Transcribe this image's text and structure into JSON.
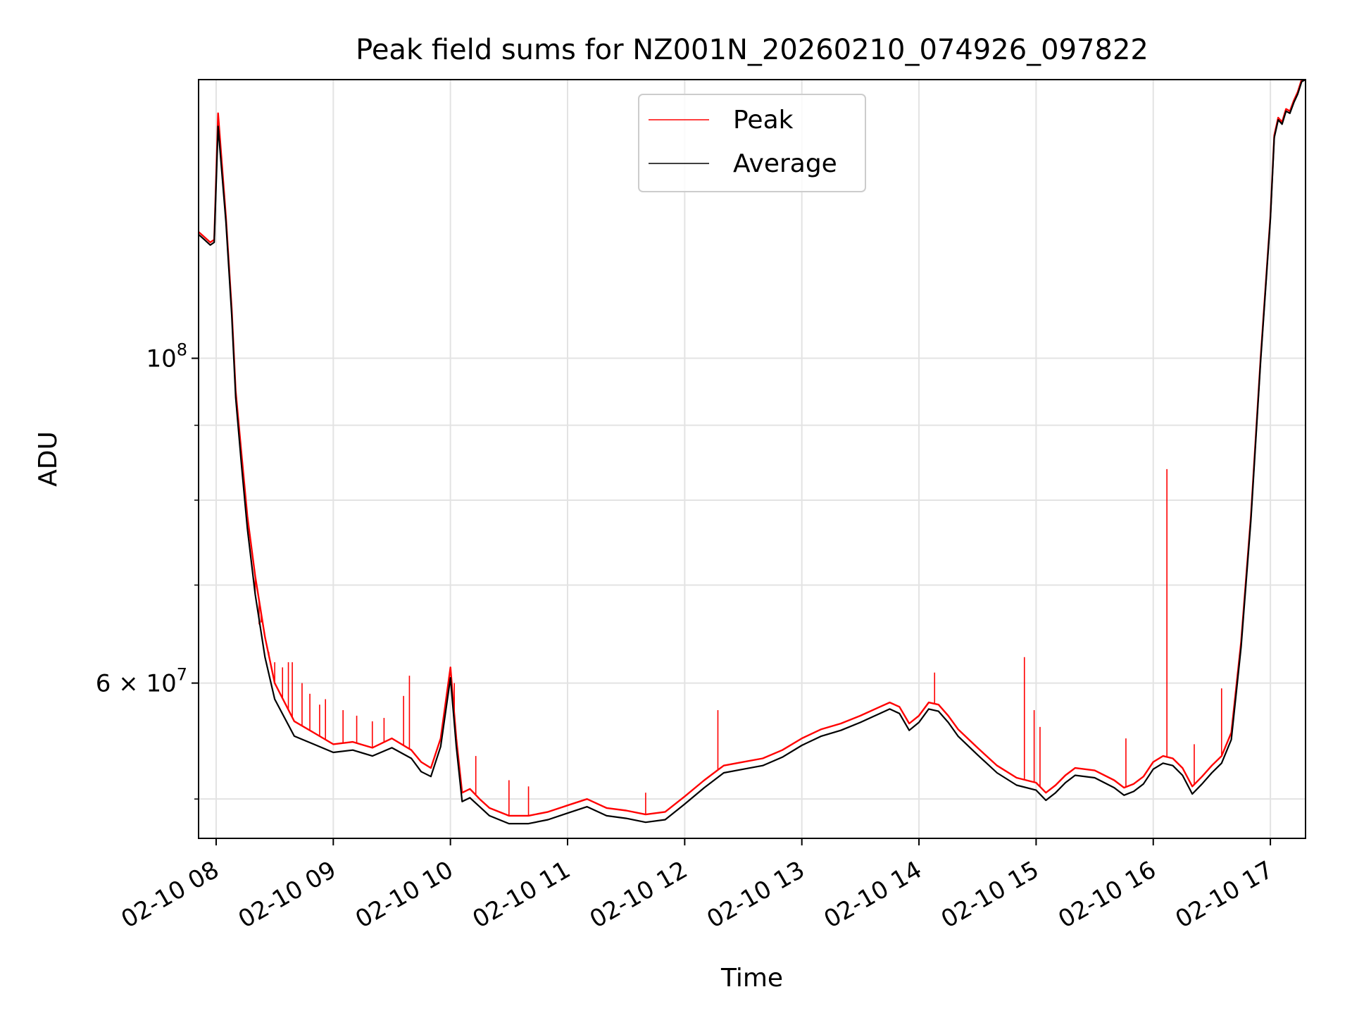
{
  "chart_data": {
    "type": "line",
    "title": "Peak field sums for NZ001N_20260210_074926_097822",
    "xlabel": "Time",
    "ylabel": "ADU",
    "y_scale": "log",
    "grid": true,
    "legend_position": "top-center",
    "x_ticks": [
      "02-10 08",
      "02-10 09",
      "02-10 10",
      "02-10 11",
      "02-10 12",
      "02-10 13",
      "02-10 14",
      "02-10 15",
      "02-10 16",
      "02-10 17"
    ],
    "x_tick_dates": [
      "2026-02-10T08:00",
      "2026-02-10T09:00",
      "2026-02-10T10:00",
      "2026-02-10T11:00",
      "2026-02-10T12:00",
      "2026-02-10T13:00",
      "2026-02-10T14:00",
      "2026-02-10T15:00",
      "2026-02-10T16:00",
      "2026-02-10T17:00"
    ],
    "xlim": [
      "2026-02-10T07:51",
      "2026-02-10T17:18"
    ],
    "ylim": [
      47000000,
      155000000
    ],
    "y_major_ticks": [
      {
        "value": 100000000,
        "label": "10",
        "exp": "8"
      },
      {
        "value": 60000000,
        "label": "6 × 10",
        "exp": "7"
      }
    ],
    "y_minor_grid": [
      50000000,
      70000000,
      80000000,
      90000000,
      200000000
    ],
    "series": [
      {
        "name": "Peak",
        "color": "#ff0000",
        "x": [
          "2026-02-10T07:51",
          "2026-02-10T07:54",
          "2026-02-10T07:57",
          "2026-02-10T07:59",
          "2026-02-10T08:01",
          "2026-02-10T08:05",
          "2026-02-10T08:08",
          "2026-02-10T08:10",
          "2026-02-10T08:13",
          "2026-02-10T08:16",
          "2026-02-10T08:20",
          "2026-02-10T08:25",
          "2026-02-10T08:30",
          "2026-02-10T08:40",
          "2026-02-10T08:50",
          "2026-02-10T09:00",
          "2026-02-10T09:10",
          "2026-02-10T09:20",
          "2026-02-10T09:30",
          "2026-02-10T09:40",
          "2026-02-10T09:45",
          "2026-02-10T09:50",
          "2026-02-10T09:55",
          "2026-02-10T10:00",
          "2026-02-10T10:03",
          "2026-02-10T10:06",
          "2026-02-10T10:10",
          "2026-02-10T10:15",
          "2026-02-10T10:20",
          "2026-02-10T10:30",
          "2026-02-10T10:40",
          "2026-02-10T10:50",
          "2026-02-10T11:00",
          "2026-02-10T11:10",
          "2026-02-10T11:20",
          "2026-02-10T11:30",
          "2026-02-10T11:40",
          "2026-02-10T11:50",
          "2026-02-10T12:00",
          "2026-02-10T12:10",
          "2026-02-10T12:20",
          "2026-02-10T12:30",
          "2026-02-10T12:40",
          "2026-02-10T12:50",
          "2026-02-10T13:00",
          "2026-02-10T13:10",
          "2026-02-10T13:20",
          "2026-02-10T13:30",
          "2026-02-10T13:40",
          "2026-02-10T13:45",
          "2026-02-10T13:50",
          "2026-02-10T13:55",
          "2026-02-10T14:00",
          "2026-02-10T14:05",
          "2026-02-10T14:10",
          "2026-02-10T14:15",
          "2026-02-10T14:20",
          "2026-02-10T14:30",
          "2026-02-10T14:40",
          "2026-02-10T14:50",
          "2026-02-10T15:00",
          "2026-02-10T15:05",
          "2026-02-10T15:10",
          "2026-02-10T15:15",
          "2026-02-10T15:20",
          "2026-02-10T15:30",
          "2026-02-10T15:40",
          "2026-02-10T15:45",
          "2026-02-10T15:50",
          "2026-02-10T15:55",
          "2026-02-10T16:00",
          "2026-02-10T16:05",
          "2026-02-10T16:10",
          "2026-02-10T16:15",
          "2026-02-10T16:20",
          "2026-02-10T16:25",
          "2026-02-10T16:30",
          "2026-02-10T16:35",
          "2026-02-10T16:40",
          "2026-02-10T16:45",
          "2026-02-10T16:50",
          "2026-02-10T16:55",
          "2026-02-10T17:00",
          "2026-02-10T17:02",
          "2026-02-10T17:04",
          "2026-02-10T17:06",
          "2026-02-10T17:08",
          "2026-02-10T17:10",
          "2026-02-10T17:12",
          "2026-02-10T17:14",
          "2026-02-10T17:16",
          "2026-02-10T17:18"
        ],
        "y": [
          122000000,
          121000000,
          120000000,
          120500000,
          147000000,
          125000000,
          108000000,
          95000000,
          86000000,
          78000000,
          71000000,
          64500000,
          60000000,
          56500000,
          55500000,
          54500000,
          54700000,
          54200000,
          55000000,
          54000000,
          53000000,
          52500000,
          55000000,
          61500000,
          55000000,
          50500000,
          50800000,
          50000000,
          49300000,
          48700000,
          48700000,
          49000000,
          49500000,
          50000000,
          49300000,
          49100000,
          48800000,
          49000000,
          50200000,
          51500000,
          52700000,
          53000000,
          53300000,
          54000000,
          55000000,
          55800000,
          56300000,
          57000000,
          57800000,
          58200000,
          57800000,
          56300000,
          57000000,
          58200000,
          58000000,
          57000000,
          55800000,
          54200000,
          52700000,
          51700000,
          51300000,
          50500000,
          51100000,
          51900000,
          52500000,
          52300000,
          51500000,
          50900000,
          51200000,
          51800000,
          53000000,
          53500000,
          53300000,
          52500000,
          51000000,
          51800000,
          52700000,
          53500000,
          55500000,
          64000000,
          78000000,
          100000000,
          125000000,
          142000000,
          146000000,
          145000000,
          148000000,
          147500000,
          150000000,
          152000000,
          155000000,
          155500000
        ],
        "spikes": [
          {
            "x": "2026-02-10T08:20",
            "y": 69000000
          },
          {
            "x": "2026-02-10T08:22",
            "y": 65800000
          },
          {
            "x": "2026-02-10T08:23",
            "y": 66000000
          },
          {
            "x": "2026-02-10T08:27",
            "y": 63000000
          },
          {
            "x": "2026-02-10T08:30",
            "y": 62000000
          },
          {
            "x": "2026-02-10T08:34",
            "y": 61500000
          },
          {
            "x": "2026-02-10T08:37",
            "y": 62000000
          },
          {
            "x": "2026-02-10T08:39",
            "y": 62000000
          },
          {
            "x": "2026-02-10T08:44",
            "y": 60000000
          },
          {
            "x": "2026-02-10T08:48",
            "y": 59000000
          },
          {
            "x": "2026-02-10T08:53",
            "y": 58000000
          },
          {
            "x": "2026-02-10T08:56",
            "y": 58500000
          },
          {
            "x": "2026-02-10T09:05",
            "y": 57500000
          },
          {
            "x": "2026-02-10T09:12",
            "y": 57000000
          },
          {
            "x": "2026-02-10T09:20",
            "y": 56500000
          },
          {
            "x": "2026-02-10T09:26",
            "y": 56800000
          },
          {
            "x": "2026-02-10T09:36",
            "y": 58800000
          },
          {
            "x": "2026-02-10T09:39",
            "y": 60700000
          },
          {
            "x": "2026-02-10T10:02",
            "y": 60000000
          },
          {
            "x": "2026-02-10T10:13",
            "y": 53500000
          },
          {
            "x": "2026-02-10T10:30",
            "y": 51500000
          },
          {
            "x": "2026-02-10T10:40",
            "y": 51000000
          },
          {
            "x": "2026-02-10T11:40",
            "y": 50500000
          },
          {
            "x": "2026-02-10T12:17",
            "y": 57500000
          },
          {
            "x": "2026-02-10T14:08",
            "y": 61000000
          },
          {
            "x": "2026-02-10T14:54",
            "y": 62500000
          },
          {
            "x": "2026-02-10T14:59",
            "y": 57500000
          },
          {
            "x": "2026-02-10T15:02",
            "y": 56000000
          },
          {
            "x": "2026-02-10T15:46",
            "y": 55000000
          },
          {
            "x": "2026-02-10T16:07",
            "y": 84000000
          },
          {
            "x": "2026-02-10T16:21",
            "y": 54500000
          },
          {
            "x": "2026-02-10T16:35",
            "y": 59500000
          }
        ]
      },
      {
        "name": "Average",
        "color": "#000000",
        "x": [
          "2026-02-10T07:51",
          "2026-02-10T07:54",
          "2026-02-10T07:57",
          "2026-02-10T07:59",
          "2026-02-10T08:01",
          "2026-02-10T08:05",
          "2026-02-10T08:08",
          "2026-02-10T08:10",
          "2026-02-10T08:13",
          "2026-02-10T08:16",
          "2026-02-10T08:20",
          "2026-02-10T08:25",
          "2026-02-10T08:30",
          "2026-02-10T08:40",
          "2026-02-10T08:50",
          "2026-02-10T09:00",
          "2026-02-10T09:10",
          "2026-02-10T09:20",
          "2026-02-10T09:30",
          "2026-02-10T09:40",
          "2026-02-10T09:45",
          "2026-02-10T09:50",
          "2026-02-10T09:55",
          "2026-02-10T10:00",
          "2026-02-10T10:03",
          "2026-02-10T10:06",
          "2026-02-10T10:10",
          "2026-02-10T10:15",
          "2026-02-10T10:20",
          "2026-02-10T10:30",
          "2026-02-10T10:40",
          "2026-02-10T10:50",
          "2026-02-10T11:00",
          "2026-02-10T11:10",
          "2026-02-10T11:20",
          "2026-02-10T11:30",
          "2026-02-10T11:40",
          "2026-02-10T11:50",
          "2026-02-10T12:00",
          "2026-02-10T12:10",
          "2026-02-10T12:20",
          "2026-02-10T12:30",
          "2026-02-10T12:40",
          "2026-02-10T12:50",
          "2026-02-10T13:00",
          "2026-02-10T13:10",
          "2026-02-10T13:20",
          "2026-02-10T13:30",
          "2026-02-10T13:40",
          "2026-02-10T13:45",
          "2026-02-10T13:50",
          "2026-02-10T13:55",
          "2026-02-10T14:00",
          "2026-02-10T14:05",
          "2026-02-10T14:10",
          "2026-02-10T14:15",
          "2026-02-10T14:20",
          "2026-02-10T14:30",
          "2026-02-10T14:40",
          "2026-02-10T14:50",
          "2026-02-10T15:00",
          "2026-02-10T15:05",
          "2026-02-10T15:10",
          "2026-02-10T15:15",
          "2026-02-10T15:20",
          "2026-02-10T15:30",
          "2026-02-10T15:40",
          "2026-02-10T15:45",
          "2026-02-10T15:50",
          "2026-02-10T15:55",
          "2026-02-10T16:00",
          "2026-02-10T16:05",
          "2026-02-10T16:10",
          "2026-02-10T16:15",
          "2026-02-10T16:20",
          "2026-02-10T16:25",
          "2026-02-10T16:30",
          "2026-02-10T16:35",
          "2026-02-10T16:40",
          "2026-02-10T16:45",
          "2026-02-10T16:50",
          "2026-02-10T16:55",
          "2026-02-10T17:00",
          "2026-02-10T17:02",
          "2026-02-10T17:04",
          "2026-02-10T17:06",
          "2026-02-10T17:08",
          "2026-02-10T17:10",
          "2026-02-10T17:12",
          "2026-02-10T17:14",
          "2026-02-10T17:16",
          "2026-02-10T17:18"
        ],
        "y": [
          121500000,
          120500000,
          119500000,
          120000000,
          144000000,
          124000000,
          107000000,
          94000000,
          84500000,
          76500000,
          69000000,
          62500000,
          58500000,
          55200000,
          54500000,
          53800000,
          54000000,
          53500000,
          54200000,
          53300000,
          52200000,
          51800000,
          54300000,
          60500000,
          54300000,
          49800000,
          50100000,
          49400000,
          48700000,
          48100000,
          48100000,
          48400000,
          48900000,
          49400000,
          48700000,
          48500000,
          48200000,
          48400000,
          49600000,
          50900000,
          52100000,
          52400000,
          52700000,
          53400000,
          54400000,
          55200000,
          55700000,
          56400000,
          57200000,
          57600000,
          57200000,
          55700000,
          56400000,
          57600000,
          57400000,
          56400000,
          55200000,
          53600000,
          52100000,
          51100000,
          50700000,
          49900000,
          50500000,
          51300000,
          51900000,
          51700000,
          50900000,
          50300000,
          50600000,
          51200000,
          52400000,
          52900000,
          52700000,
          51900000,
          50400000,
          51200000,
          52100000,
          52900000,
          54900000,
          63500000,
          77500000,
          99500000,
          124500000,
          141500000,
          145500000,
          144500000,
          147500000,
          147000000,
          149500000,
          151500000,
          154500000,
          155000000
        ]
      }
    ]
  }
}
